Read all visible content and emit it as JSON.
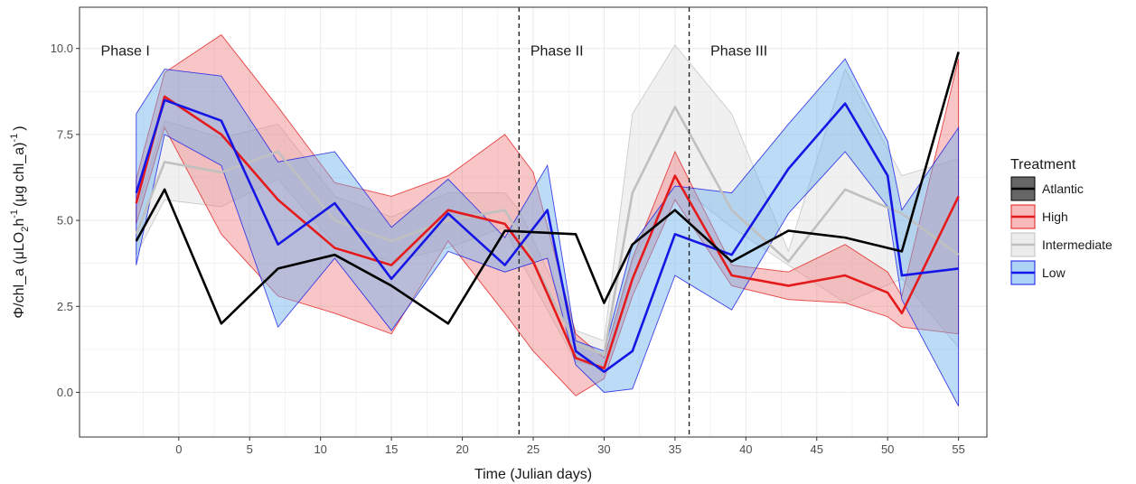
{
  "chart_data": {
    "type": "line",
    "xlabel": "Time (Julian days)",
    "ylabel_main": "Φ/chl_a  (μLO",
    "ylabel_sub": "2",
    "ylabel_h": "h",
    "ylabel_sup1": "-1",
    "ylabel_paren": "(μg chl_a)",
    "ylabel_sup2": "-1",
    "ylabel_close": ")",
    "xlim": [
      -7,
      57
    ],
    "ylim": [
      -1.3,
      11.2
    ],
    "xticks": [
      0,
      5,
      10,
      15,
      20,
      25,
      30,
      35,
      40,
      45,
      50,
      55
    ],
    "yticks": [
      0,
      2.5,
      5,
      7.5,
      10
    ],
    "ytick_labels": [
      "0.0",
      "2.5",
      "5.0",
      "7.5",
      "10.0"
    ],
    "grid": true,
    "phase_lines": [
      24,
      36
    ],
    "phases": [
      {
        "label": "Phase I",
        "x": -5.5
      },
      {
        "label": "Phase II",
        "x": 24.8
      },
      {
        "label": "Phase III",
        "x": 37.5
      }
    ],
    "legend": {
      "title": "Treatment",
      "position": "right"
    },
    "series": [
      {
        "name": "Atlantic",
        "color": "#000000",
        "fill": "#555555",
        "x": [
          -3,
          -1,
          3,
          7,
          11,
          15,
          19,
          23,
          28,
          30,
          32,
          35,
          39,
          43,
          47,
          51,
          55
        ],
        "y": [
          4.4,
          5.9,
          2.0,
          3.6,
          4.0,
          3.1,
          2.0,
          4.7,
          4.6,
          2.6,
          4.3,
          5.3,
          3.8,
          4.7,
          4.5,
          4.1,
          9.9
        ],
        "lower": [],
        "upper": []
      },
      {
        "name": "Intermediate",
        "color": "#c0c0c0",
        "fill": "#dddddd",
        "x": [
          -3,
          -1,
          3,
          7,
          11,
          15,
          19,
          23,
          24,
          28,
          30,
          32,
          35,
          39,
          43,
          47,
          51,
          55
        ],
        "y": [
          4.6,
          6.7,
          6.4,
          7.0,
          5.0,
          4.4,
          5.0,
          5.3,
          4.6,
          1.4,
          1.1,
          5.8,
          8.3,
          5.3,
          3.8,
          5.9,
          5.2,
          4.0
        ],
        "lower": [
          4.0,
          5.6,
          5.4,
          6.2,
          4.3,
          3.8,
          4.2,
          4.8,
          3.9,
          0.9,
          0.7,
          3.8,
          6.1,
          4.8,
          3.7,
          2.6,
          3.3,
          1.3
        ],
        "upper": [
          5.3,
          7.9,
          7.4,
          7.8,
          5.7,
          5.1,
          5.8,
          5.8,
          5.3,
          1.8,
          1.5,
          8.1,
          10.1,
          8.1,
          4.1,
          9.4,
          6.3,
          6.8
        ]
      },
      {
        "name": "High",
        "color": "#e41a1c",
        "fill": "#f08080",
        "x": [
          -3,
          -1,
          3,
          7,
          11,
          15,
          19,
          23,
          25,
          28,
          30,
          32,
          35,
          39,
          43,
          47,
          50,
          51,
          55
        ],
        "y": [
          5.5,
          8.6,
          7.5,
          5.6,
          4.2,
          3.7,
          5.3,
          4.9,
          3.8,
          1.0,
          0.7,
          3.3,
          6.3,
          3.4,
          3.1,
          3.4,
          2.9,
          2.3,
          5.7
        ],
        "lower": [
          4.9,
          7.7,
          4.6,
          2.8,
          2.3,
          1.7,
          4.4,
          2.3,
          1.2,
          -0.1,
          0.4,
          2.8,
          5.6,
          3.1,
          2.7,
          2.6,
          2.2,
          1.9,
          1.7
        ],
        "upper": [
          6.2,
          9.3,
          10.4,
          8.3,
          6.1,
          5.7,
          6.3,
          7.5,
          6.4,
          1.7,
          1.0,
          3.9,
          7.0,
          3.7,
          3.5,
          4.3,
          3.5,
          2.8,
          9.7
        ]
      },
      {
        "name": "Low",
        "color": "#1515e6",
        "fill": "#6ab0ee",
        "x": [
          -3,
          -1,
          3,
          7,
          11,
          15,
          19,
          23,
          26,
          28,
          30,
          32,
          35,
          39,
          43,
          47,
          50,
          51,
          55
        ],
        "y": [
          5.8,
          8.5,
          7.9,
          4.3,
          5.5,
          3.3,
          5.2,
          3.7,
          5.3,
          1.2,
          0.6,
          1.2,
          4.6,
          4.0,
          6.5,
          8.4,
          6.3,
          3.4,
          3.6
        ],
        "lower": [
          3.7,
          7.5,
          6.6,
          1.9,
          3.9,
          1.8,
          4.1,
          3.5,
          3.9,
          0.8,
          0.0,
          0.1,
          3.4,
          2.4,
          5.2,
          7.0,
          5.4,
          2.7,
          -0.4
        ],
        "upper": [
          8.1,
          9.4,
          9.2,
          6.7,
          7.0,
          4.8,
          6.2,
          4.5,
          6.6,
          1.5,
          1.2,
          4.3,
          6.0,
          5.8,
          7.8,
          9.7,
          7.3,
          5.3,
          7.7
        ]
      }
    ]
  }
}
